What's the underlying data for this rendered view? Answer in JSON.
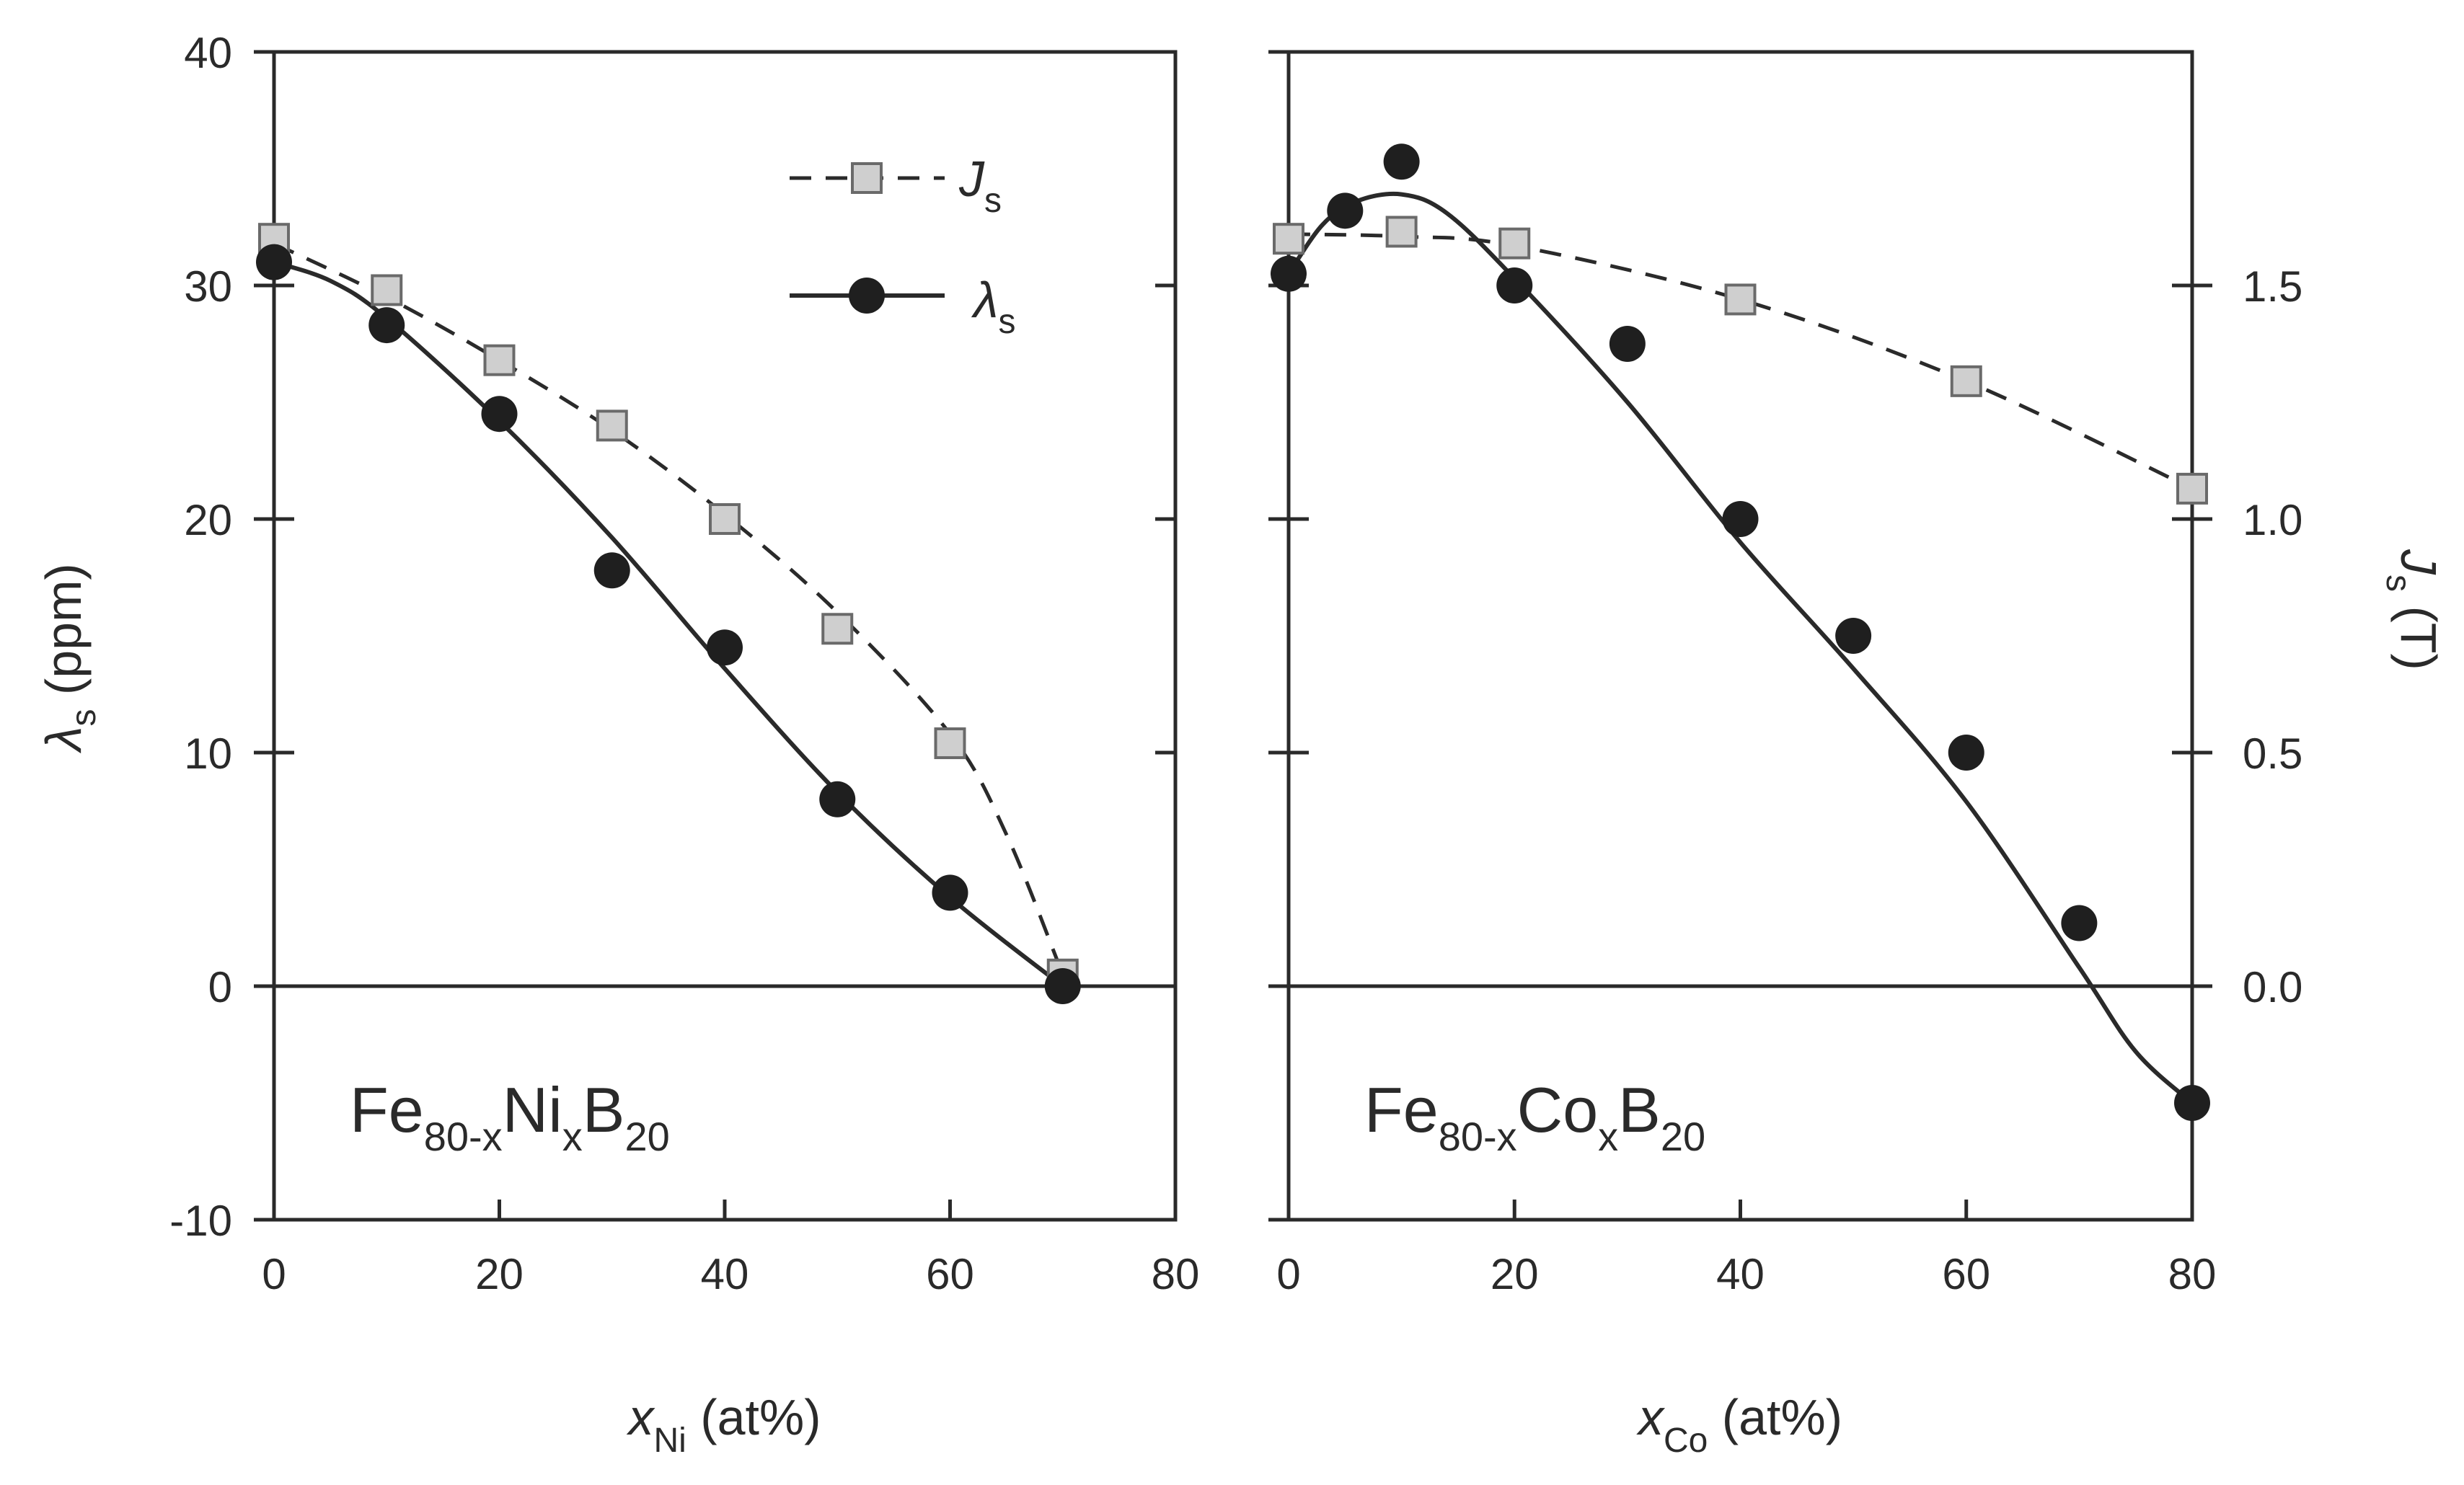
{
  "chart_data": [
    {
      "type": "line",
      "panel": "left",
      "xlabel": "x",
      "xlabel_sub": "Ni",
      "xlabel_unit": " (at%)",
      "ylabel": "λ",
      "ylabel_sub": "s",
      "ylabel_unit": " (ppm)",
      "xlim": [
        0,
        80
      ],
      "ylim": [
        -10,
        40
      ],
      "xticks": [
        "0",
        "20",
        "40",
        "60",
        "80"
      ],
      "yticks": [
        "-10",
        "0",
        "10",
        "20",
        "30",
        "40"
      ],
      "annotation": {
        "base1": "Fe",
        "sub1": "80-x",
        "base2": "Ni",
        "sub2": "x",
        "base3": "B",
        "sub3": "20"
      },
      "legend": [
        {
          "symbol": "J",
          "sub": "s",
          "style": "dashed-square"
        },
        {
          "symbol": "λ",
          "sub": "s",
          "style": "solid-circle"
        }
      ],
      "series": [
        {
          "name": "J_s",
          "style": "dashed",
          "marker": "square",
          "x": [
            0,
            10,
            20,
            30,
            40,
            50,
            60,
            70
          ],
          "y": [
            32,
            29.8,
            26.8,
            24,
            20,
            15.3,
            10.4,
            0.5
          ]
        },
        {
          "name": "λ_s",
          "style": "solid",
          "marker": "circle",
          "x": [
            0,
            10,
            20,
            30,
            40,
            50,
            60,
            70
          ],
          "y": [
            31,
            28.3,
            24.5,
            17.8,
            14.5,
            8,
            4,
            0
          ]
        }
      ],
      "fit_curves": {
        "J_s": {
          "x": [
            0,
            10,
            20,
            30,
            40,
            50,
            60,
            65,
            70
          ],
          "y": [
            31.8,
            29.5,
            26.8,
            23.8,
            20.2,
            16,
            10.8,
            6.5,
            0.5
          ]
        },
        "λ_s": {
          "x": [
            0,
            5,
            10,
            20,
            30,
            40,
            50,
            60,
            70
          ],
          "y": [
            31,
            30.2,
            28.6,
            24.2,
            19.2,
            13.6,
            8.3,
            3.8,
            0
          ]
        }
      }
    },
    {
      "type": "line",
      "panel": "right",
      "xlabel": "x",
      "xlabel_sub": "Co",
      "xlabel_unit": " (at%)",
      "ylabel_right": "J",
      "ylabel_right_sub": "s",
      "ylabel_right_unit": " (T)",
      "xlim": [
        0,
        80
      ],
      "ylim": [
        -10,
        40
      ],
      "ylim_right": [
        -0.5,
        2.0
      ],
      "xticks": [
        "0",
        "20",
        "40",
        "60",
        "80"
      ],
      "yticks_right": [
        "0.0",
        "0.5",
        "1.0",
        "1.5"
      ],
      "annotation": {
        "base1": "Fe",
        "sub1": "80-x",
        "base2": "Co",
        "sub2": "x",
        "base3": "B",
        "sub3": "20"
      },
      "series": [
        {
          "name": "J_s",
          "style": "dashed",
          "marker": "square",
          "x": [
            0,
            10,
            20,
            40,
            60,
            80
          ],
          "y": [
            32,
            32.3,
            31.8,
            29.4,
            25.9,
            21.3
          ]
        },
        {
          "name": "λ_s",
          "style": "solid",
          "marker": "circle",
          "x": [
            0,
            5,
            10,
            20,
            30,
            40,
            50,
            60,
            70,
            80
          ],
          "y": [
            30.5,
            33.2,
            35.3,
            30,
            27.5,
            20,
            15,
            10,
            2.7,
            -5
          ]
        }
      ],
      "fit_curves": {
        "J_s": {
          "x": [
            0,
            10,
            20,
            40,
            60,
            80
          ],
          "y": [
            32.2,
            32.1,
            31.7,
            29.4,
            25.9,
            21.3
          ]
        },
        "λ_s": {
          "x": [
            0,
            3,
            6,
            10,
            14,
            20,
            30,
            40,
            50,
            60,
            70,
            75,
            80
          ],
          "y": [
            30.5,
            32.6,
            33.6,
            33.9,
            33.1,
            30.3,
            25,
            19,
            13.6,
            7.9,
            0.8,
            -2.8,
            -5
          ]
        }
      }
    }
  ]
}
